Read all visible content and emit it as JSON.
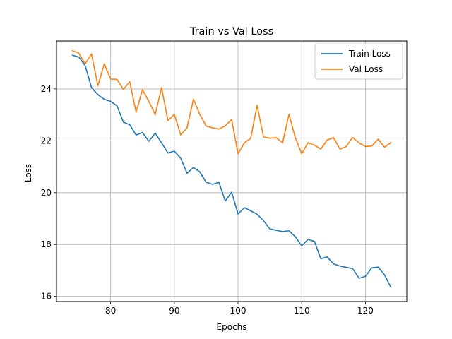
{
  "chart_data": {
    "type": "line",
    "title": "Train vs Val Loss",
    "xlabel": "Epochs",
    "ylabel": "Loss",
    "xlim": [
      71.5,
      126.5
    ],
    "ylim": [
      15.8,
      25.85
    ],
    "xticks": [
      80,
      90,
      100,
      110,
      120
    ],
    "yticks": [
      16,
      18,
      20,
      22,
      24
    ],
    "grid": true,
    "legend_position": "top-right",
    "x": [
      74,
      75,
      76,
      77,
      78,
      79,
      80,
      81,
      82,
      83,
      84,
      85,
      86,
      87,
      88,
      89,
      90,
      91,
      92,
      93,
      94,
      95,
      96,
      97,
      98,
      99,
      100,
      101,
      102,
      103,
      104,
      105,
      106,
      107,
      108,
      109,
      110,
      111,
      112,
      113,
      114,
      115,
      116,
      117,
      118,
      119,
      120,
      121,
      122,
      123,
      124
    ],
    "series": [
      {
        "name": "Train Loss",
        "color": "#1f77b4",
        "values": [
          25.3,
          25.23,
          24.9,
          24.05,
          23.78,
          23.6,
          23.52,
          23.35,
          22.72,
          22.62,
          22.22,
          22.32,
          21.98,
          22.3,
          21.92,
          21.53,
          21.6,
          21.33,
          20.75,
          20.97,
          20.8,
          20.4,
          20.32,
          20.4,
          19.68,
          20.02,
          19.18,
          19.42,
          19.3,
          19.17,
          18.92,
          18.6,
          18.55,
          18.5,
          18.53,
          18.3,
          17.95,
          18.2,
          18.12,
          17.45,
          17.52,
          17.25,
          17.17,
          17.12,
          17.07,
          16.7,
          16.77,
          17.1,
          17.13,
          16.83,
          16.35
        ]
      },
      {
        "name": "Val Loss",
        "color": "#ff7f0e",
        "values": [
          25.48,
          25.38,
          24.97,
          25.35,
          24.12,
          24.97,
          24.38,
          24.37,
          23.98,
          24.28,
          23.1,
          23.97,
          23.52,
          23.01,
          24.05,
          22.78,
          23.02,
          22.23,
          22.5,
          23.6,
          23.02,
          22.57,
          22.5,
          22.45,
          22.58,
          22.82,
          21.5,
          21.92,
          22.1,
          23.37,
          22.15,
          22.1,
          22.12,
          21.92,
          23.02,
          22.12,
          21.5,
          21.93,
          21.83,
          21.68,
          22.03,
          22.12,
          21.68,
          21.78,
          22.13,
          21.92,
          21.78,
          21.8,
          22.06,
          21.75,
          21.93
        ]
      }
    ]
  }
}
